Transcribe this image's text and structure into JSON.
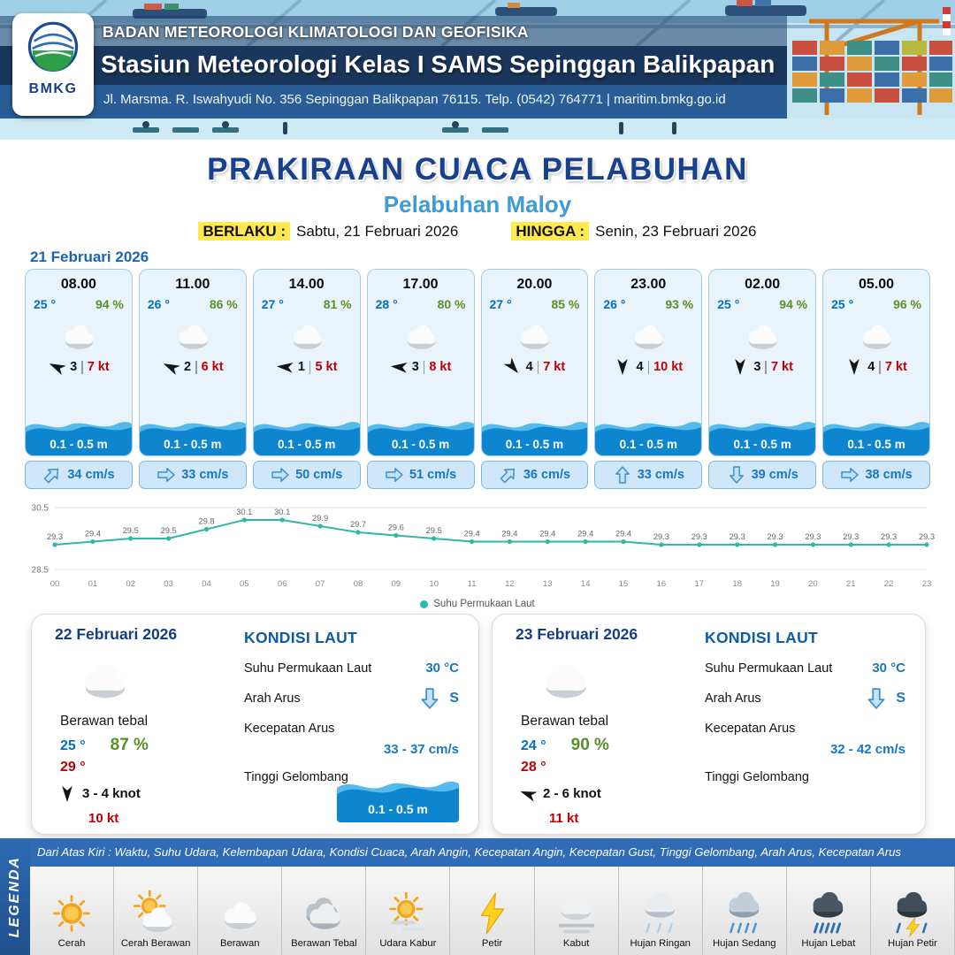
{
  "header": {
    "logo_text": "BMKG",
    "line1": "BADAN METEOROLOGI KLIMATOLOGI DAN GEOFISIKA",
    "line2": "Stasiun Meteorologi Kelas I SAMS Sepinggan Balikpapan",
    "line3": "Jl. Marsma. R. Iswahyudi No. 356 Sepinggan Balikpapan 76115. Telp. (0542) 764771 | maritim.bmkg.go.id"
  },
  "title": {
    "main": "PRAKIRAAN CUACA PELABUHAN",
    "subtitle": "Pelabuhan Maloy",
    "berlaku_label": "BERLAKU :",
    "berlaku_value": "Sabtu, 21 Februari 2026",
    "hingga_label": "HINGGA :",
    "hingga_value": "Senin, 23 Februari 2026"
  },
  "forecast": {
    "date": "21 Februari 2026",
    "hours": [
      {
        "time": "08.00",
        "temp": "25 °",
        "hum": "94 %",
        "icon": "cloud",
        "wind": "3",
        "gust": "7 kt",
        "wind_dir": 205,
        "wave": "0.1 - 0.5 m",
        "current": "34 cm/s",
        "current_dir": -45
      },
      {
        "time": "11.00",
        "temp": "26 °",
        "hum": "86 %",
        "icon": "cloud",
        "wind": "2",
        "gust": "6 kt",
        "wind_dir": 205,
        "wave": "0.1 - 0.5 m",
        "current": "33 cm/s",
        "current_dir": 0
      },
      {
        "time": "14.00",
        "temp": "27 °",
        "hum": "81 %",
        "icon": "cloud",
        "wind": "1",
        "gust": "5 kt",
        "wind_dir": 185,
        "wave": "0.1 - 0.5 m",
        "current": "50 cm/s",
        "current_dir": 0
      },
      {
        "time": "17.00",
        "temp": "28 °",
        "hum": "80 %",
        "icon": "cloud",
        "wind": "3",
        "gust": "8 kt",
        "wind_dir": 185,
        "wave": "0.1 - 0.5 m",
        "current": "51 cm/s",
        "current_dir": 0
      },
      {
        "time": "20.00",
        "temp": "27 °",
        "hum": "85 %",
        "icon": "cloud",
        "wind": "4",
        "gust": "7 kt",
        "wind_dir": 50,
        "wave": "0.1 - 0.5 m",
        "current": "36 cm/s",
        "current_dir": -45
      },
      {
        "time": "23.00",
        "temp": "26 °",
        "hum": "93 %",
        "icon": "cloud",
        "wind": "4",
        "gust": "10 kt",
        "wind_dir": 90,
        "wave": "0.1 - 0.5 m",
        "current": "33 cm/s",
        "current_dir": -90
      },
      {
        "time": "02.00",
        "temp": "25 °",
        "hum": "94 %",
        "icon": "cloud",
        "wind": "3",
        "gust": "7 kt",
        "wind_dir": 90,
        "wave": "0.1 - 0.5 m",
        "current": "39 cm/s",
        "current_dir": 90
      },
      {
        "time": "05.00",
        "temp": "25 °",
        "hum": "96 %",
        "icon": "cloud",
        "wind": "4",
        "gust": "7 kt",
        "wind_dir": 90,
        "wave": "0.1 - 0.5 m",
        "current": "38 cm/s",
        "current_dir": 0
      }
    ]
  },
  "chart_data": {
    "type": "line",
    "series_name": "Suhu Permukaan Laut",
    "x": [
      "00",
      "01",
      "02",
      "03",
      "04",
      "05",
      "06",
      "07",
      "08",
      "09",
      "10",
      "11",
      "12",
      "13",
      "14",
      "15",
      "16",
      "17",
      "18",
      "19",
      "20",
      "21",
      "22",
      "23"
    ],
    "values": [
      29.3,
      29.4,
      29.5,
      29.5,
      29.8,
      30.1,
      30.1,
      29.9,
      29.7,
      29.6,
      29.5,
      29.4,
      29.4,
      29.4,
      29.4,
      29.4,
      29.3,
      29.3,
      29.3,
      29.3,
      29.3,
      29.3,
      29.3,
      29.3
    ],
    "ylim": [
      28.5,
      30.5
    ],
    "yticks": [
      30.5,
      28.5
    ],
    "line_color": "#2fb8a6",
    "legend_position": "bottom",
    "grid": true
  },
  "days": [
    {
      "date": "22 Februari 2026",
      "icon": "cloud",
      "cond": "Berawan tebal",
      "temp": "25 °",
      "hum": "87 %",
      "tmax": "29 °",
      "wind": "3 - 4 knot",
      "wind_dir": 90,
      "gust": "10 kt",
      "sea": {
        "title": "KONDISI LAUT",
        "sst_label": "Suhu Permukaan Laut",
        "sst": "30 °C",
        "arah_label": "Arah Arus",
        "arah": "S",
        "arah_dir": 90,
        "kec_label": "Kecepatan Arus",
        "kec": "33 - 37 cm/s",
        "wave_label": "Tinggi Gelombang",
        "wave": "0.1 - 0.5 m"
      }
    },
    {
      "date": "23 Februari 2026",
      "icon": "cloud",
      "cond": "Berawan tebal",
      "temp": "24 °",
      "hum": "90 %",
      "tmax": "28 °",
      "wind": "2 - 6 knot",
      "wind_dir": 200,
      "gust": "11 kt",
      "sea": {
        "title": "KONDISI LAUT",
        "sst_label": "Suhu Permukaan Laut",
        "sst": "30 °C",
        "arah_label": "Arah Arus",
        "arah": "S",
        "arah_dir": 90,
        "kec_label": "Kecepatan Arus",
        "kec": "32 - 42 cm/s",
        "wave_label": "Tinggi Gelombang"
      }
    }
  ],
  "legend": {
    "sidebar": "LEGENDA",
    "note": "Dari Atas Kiri : Waktu, Suhu Udara, Kelembapan Udara, Kondisi Cuaca, Arah Angin, Kecepatan Angin, Kecepatan Gust, Tinggi Gelombang, Arah Arus, Kecepatan Arus",
    "items": [
      {
        "label": "Cerah",
        "icon": "sun"
      },
      {
        "label": "Cerah Berawan",
        "icon": "sun-cloud"
      },
      {
        "label": "Berawan",
        "icon": "cloud"
      },
      {
        "label": "Berawan Tebal",
        "icon": "cloud-thick"
      },
      {
        "label": "Udara Kabur",
        "icon": "haze"
      },
      {
        "label": "Petir",
        "icon": "lightning"
      },
      {
        "label": "Kabut",
        "icon": "fog"
      },
      {
        "label": "Hujan Ringan",
        "icon": "rain-light"
      },
      {
        "label": "Hujan Sedang",
        "icon": "rain-mid"
      },
      {
        "label": "Hujan Lebat",
        "icon": "rain-heavy"
      },
      {
        "label": "Hujan Petir",
        "icon": "storm"
      }
    ]
  },
  "colors": {
    "navy": "#17418f",
    "subtitle_blue": "#3e9bd8",
    "temp_blue": "#0070c0",
    "humidity_green": "#5a8f28",
    "gust_red": "#c00000",
    "sea_teal": "#2fb8a6",
    "wave_blue": "#0e86cf",
    "highlight_yellow": "#ffe94d"
  }
}
